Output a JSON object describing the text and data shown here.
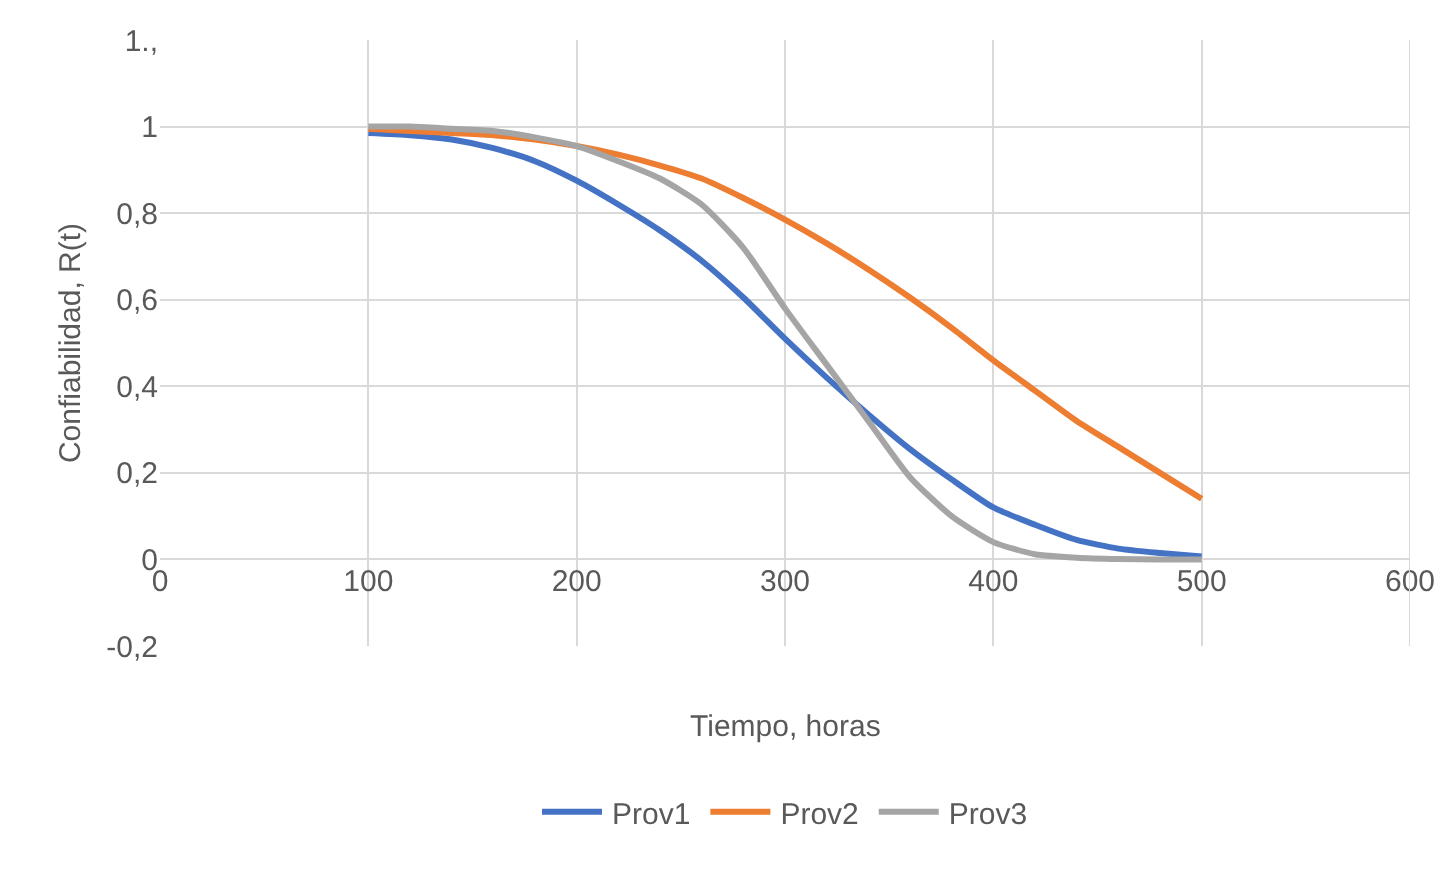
{
  "chart_data": {
    "type": "line",
    "xlabel": "Tiempo, horas",
    "ylabel": "Confiabilidad, R(t)",
    "x": [
      100,
      120,
      140,
      160,
      180,
      200,
      220,
      240,
      260,
      280,
      300,
      320,
      340,
      360,
      380,
      400,
      420,
      440,
      460,
      480,
      500
    ],
    "series": [
      {
        "name": "Prov1",
        "color": "#4472c4",
        "values": [
          0.985,
          0.98,
          0.97,
          0.95,
          0.92,
          0.875,
          0.82,
          0.76,
          0.69,
          0.605,
          0.51,
          0.42,
          0.335,
          0.255,
          0.185,
          0.12,
          0.08,
          0.045,
          0.025,
          0.015,
          0.007
        ]
      },
      {
        "name": "Prov2",
        "color": "#ed7d31",
        "values": [
          0.995,
          0.99,
          0.985,
          0.98,
          0.97,
          0.955,
          0.935,
          0.91,
          0.88,
          0.835,
          0.785,
          0.73,
          0.67,
          0.605,
          0.535,
          0.46,
          0.39,
          0.32,
          0.26,
          0.2,
          0.14
        ]
      },
      {
        "name": "Prov3",
        "color": "#a5a5a5",
        "values": [
          1,
          1,
          0.995,
          0.99,
          0.975,
          0.955,
          0.92,
          0.88,
          0.82,
          0.72,
          0.58,
          0.45,
          0.32,
          0.19,
          0.1,
          0.04,
          0.012,
          0.004,
          0.001,
          0,
          0
        ]
      }
    ],
    "xlim": [
      0,
      600
    ],
    "xticks": [
      0,
      100,
      200,
      300,
      400,
      500,
      600
    ],
    "ylim": [
      -0.2,
      1.2
    ],
    "yticks": [
      {
        "value": -0.2,
        "label": "-0,2"
      },
      0,
      {
        "value": 0.2,
        "label": "0,2"
      },
      {
        "value": 0.4,
        "label": "0,4"
      },
      {
        "value": 0.6,
        "label": "0,6"
      },
      {
        "value": 0.8,
        "label": "0,8"
      },
      1,
      {
        "value": 1.2,
        "label": "1.,"
      }
    ],
    "grid": true,
    "legend": "bottom",
    "marker": "none",
    "line_style": "solid"
  }
}
